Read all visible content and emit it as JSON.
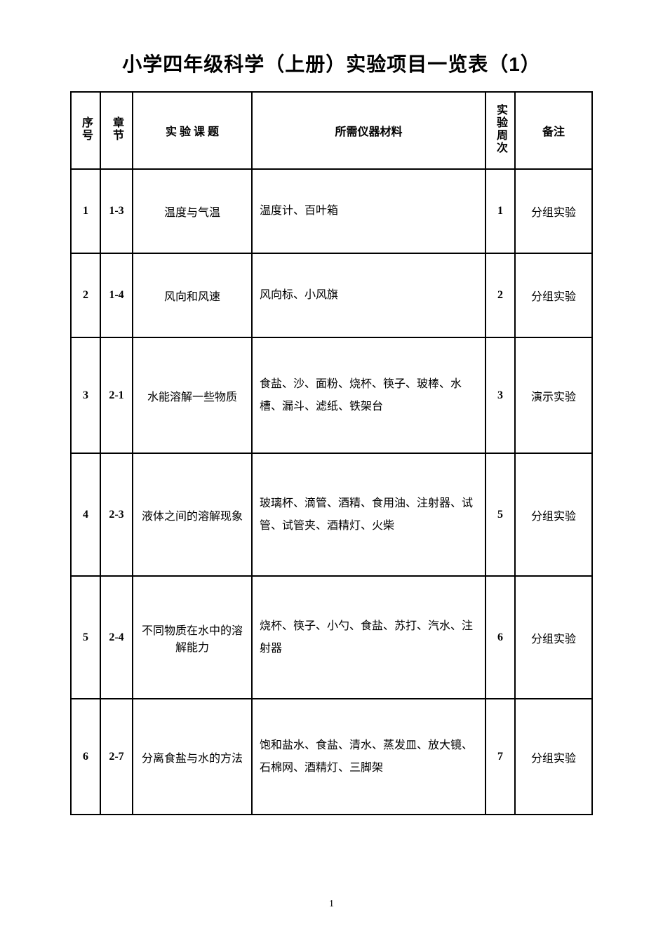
{
  "title": "小学四年级科学（上册）实验项目一览表（1）",
  "page_number": "1",
  "table": {
    "headers": {
      "seq": "序号",
      "chapter": "章节",
      "topic": "实 验 课 题",
      "materials": "所需仪器材料",
      "week": "实验周次",
      "note": "备注"
    },
    "rows": [
      {
        "seq": "1",
        "chapter": "1-3",
        "topic": "温度与气温",
        "materials": "温度计、百叶箱",
        "week": "1",
        "note": "分组实验"
      },
      {
        "seq": "2",
        "chapter": "1-4",
        "topic": "风向和风速",
        "materials": "风向标、小风旗",
        "week": "2",
        "note": "分组实验"
      },
      {
        "seq": "3",
        "chapter": "2-1",
        "topic": "水能溶解一些物质",
        "materials": "食盐、沙、面粉、烧杯、筷子、玻棒、水槽、漏斗、滤纸、铁架台",
        "week": "3",
        "note": "演示实验"
      },
      {
        "seq": "4",
        "chapter": "2-3",
        "topic": "液体之间的溶解现象",
        "materials": "玻璃杯、滴管、酒精、食用油、注射器、试管、试管夹、酒精灯、火柴",
        "week": "5",
        "note": "分组实验"
      },
      {
        "seq": "5",
        "chapter": "2-4",
        "topic": "不同物质在水中的溶解能力",
        "materials": "烧杯、筷子、小勺、食盐、苏打、汽水、注射器",
        "week": "6",
        "note": "分组实验"
      },
      {
        "seq": "6",
        "chapter": "2-7",
        "topic": "分离食盐与水的方法",
        "materials": "饱和盐水、食盐、清水、蒸发皿、放大镜、石棉网、酒精灯、三脚架",
        "week": "7",
        "note": "分组实验"
      }
    ]
  }
}
